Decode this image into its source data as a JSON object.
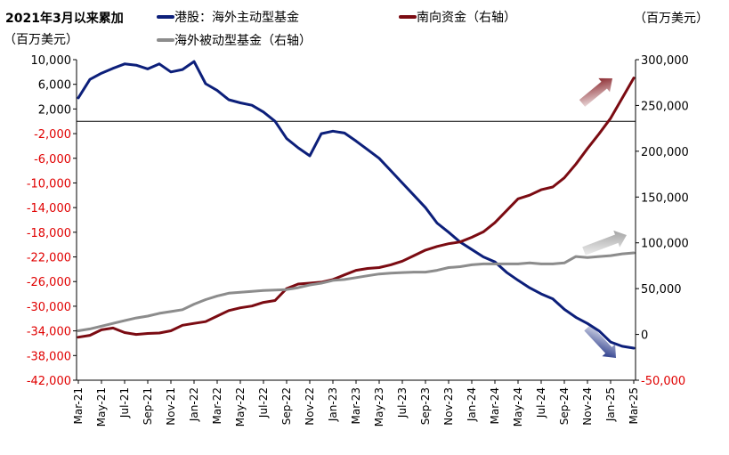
{
  "chart_data": {
    "type": "line",
    "title": "2021年3月以来累加",
    "left_unit": "（百万美元）",
    "right_unit": "（百万美元）",
    "left_axis": {
      "ylim": [
        -42000,
        10000
      ],
      "ticks": [
        10000,
        6000,
        2000,
        -2000,
        -6000,
        -10000,
        -14000,
        -18000,
        -22000,
        -26000,
        -30000,
        -34000,
        -38000,
        -42000
      ],
      "tick_labels": [
        "10,000",
        "6,000",
        "2,000",
        "-2,000",
        "-6,000",
        "-10,000",
        "-14,000",
        "-18,000",
        "-22,000",
        "-26,000",
        "-30,000",
        "-34,000",
        "-38,000",
        "-42,000"
      ],
      "positive_color": "#000000",
      "negative_color": "#e00000"
    },
    "right_axis": {
      "ylim": [
        -50000,
        300000
      ],
      "ticks": [
        300000,
        250000,
        200000,
        150000,
        100000,
        50000,
        0,
        -50000
      ],
      "tick_labels": [
        "300,000",
        "250,000",
        "200,000",
        "150,000",
        "100,000",
        "50,000",
        "0",
        "-50,000"
      ],
      "positive_color": "#000000",
      "negative_color": "#e00000"
    },
    "x": [
      "2021-03",
      "2021-04",
      "2021-05",
      "2021-06",
      "2021-07",
      "2021-08",
      "2021-09",
      "2021-10",
      "2021-11",
      "2021-12",
      "2022-01",
      "2022-02",
      "2022-03",
      "2022-04",
      "2022-05",
      "2022-06",
      "2022-07",
      "2022-08",
      "2022-09",
      "2022-10",
      "2022-11",
      "2022-12",
      "2023-01",
      "2023-02",
      "2023-03",
      "2023-04",
      "2023-05",
      "2023-06",
      "2023-07",
      "2023-08",
      "2023-09",
      "2023-10",
      "2023-11",
      "2023-12",
      "2024-01",
      "2024-02",
      "2024-03",
      "2024-04",
      "2024-05",
      "2024-06",
      "2024-07",
      "2024-08",
      "2024-09",
      "2024-10",
      "2024-11",
      "2024-12",
      "2025-01",
      "2025-02",
      "2025-03"
    ],
    "x_tick_labels": [
      "Mar-21",
      "May-21",
      "Jul-21",
      "Sep-21",
      "Nov-21",
      "Jan-22",
      "Mar-22",
      "May-22",
      "Jul-22",
      "Sep-22",
      "Nov-22",
      "Jan-23",
      "Mar-23",
      "May-23",
      "Jul-23",
      "Sep-23",
      "Nov-23",
      "Jan-24",
      "Mar-24",
      "May-24",
      "Jul-24",
      "Sep-24",
      "Nov-24",
      "Jan-25",
      "Mar-25"
    ],
    "series": [
      {
        "name": "港股：海外主动型基金",
        "axis": "left",
        "color": "#0c1f7a",
        "values": [
          3800,
          6800,
          7800,
          8600,
          9300,
          9100,
          8500,
          9300,
          8000,
          8400,
          9700,
          6100,
          5000,
          3500,
          3000,
          2600,
          1500,
          0,
          -2800,
          -4300,
          -5600,
          -2000,
          -1600,
          -1900,
          -3200,
          -4600,
          -6000,
          -8000,
          -10000,
          -12000,
          -14000,
          -16500,
          -18000,
          -19600,
          -20800,
          -22000,
          -22800,
          -24500,
          -25800,
          -27000,
          -28000,
          -28800,
          -30500,
          -31800,
          -32800,
          -34000,
          -35800,
          -36500,
          -36800
        ],
        "end_arrow": "down-right"
      },
      {
        "name": "南向资金（右轴）",
        "axis": "right",
        "color": "#7b0b12",
        "values": [
          -3000,
          -1000,
          5000,
          7000,
          2000,
          0,
          1000,
          1500,
          4000,
          10000,
          12000,
          14000,
          20000,
          26000,
          29000,
          31000,
          35000,
          37000,
          50000,
          55000,
          56000,
          57000,
          60000,
          65000,
          70000,
          72000,
          73000,
          76000,
          80000,
          86000,
          92000,
          96000,
          99000,
          101000,
          106000,
          112000,
          122000,
          135000,
          148000,
          152000,
          158000,
          161000,
          171000,
          186000,
          203000,
          219000,
          236000,
          258000,
          280000
        ],
        "end_arrow": "up-right"
      },
      {
        "name": "海外被动型基金（右轴）",
        "axis": "right",
        "color": "#8c8c8c",
        "values": [
          4000,
          6000,
          9000,
          12000,
          15000,
          18000,
          20000,
          23000,
          25000,
          27000,
          33000,
          38000,
          42000,
          45000,
          46000,
          47000,
          48000,
          48500,
          49000,
          51000,
          54000,
          56000,
          59000,
          60000,
          62000,
          64000,
          66000,
          67000,
          67500,
          68000,
          68000,
          70000,
          73000,
          74000,
          76000,
          77000,
          77000,
          77000,
          77000,
          78000,
          77000,
          77000,
          78000,
          85000,
          84000,
          85000,
          86000,
          88000,
          89000
        ],
        "end_arrow": "up-right"
      }
    ],
    "legend": {
      "placement": "top",
      "columns": 2
    }
  }
}
